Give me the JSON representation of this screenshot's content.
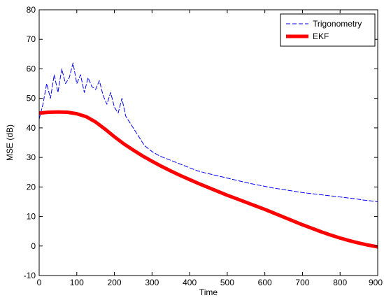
{
  "chart_data": {
    "type": "line",
    "title": "",
    "xlabel": "Time",
    "ylabel": "MSE (dB)",
    "xlim": [
      0,
      900
    ],
    "ylim": [
      -10,
      80
    ],
    "xticks": [
      0,
      100,
      200,
      300,
      400,
      500,
      600,
      700,
      800,
      900
    ],
    "xtick_labels": [
      "0",
      "100",
      "200",
      "300",
      "400",
      "500",
      "600",
      "700",
      "800",
      "900"
    ],
    "yticks": [
      -10,
      0,
      10,
      20,
      30,
      40,
      50,
      60,
      70,
      80
    ],
    "ytick_labels": [
      "-10",
      "0",
      "10",
      "20",
      "30",
      "40",
      "50",
      "60",
      "70",
      "80"
    ],
    "grid": false,
    "legend_position": "top-right",
    "series": [
      {
        "name": "Trigonometry",
        "color": "#0000ff",
        "style": "dashed",
        "x": [
          0,
          10,
          20,
          30,
          40,
          50,
          60,
          70,
          80,
          90,
          100,
          110,
          120,
          130,
          140,
          150,
          160,
          170,
          180,
          190,
          200,
          210,
          220,
          230,
          240,
          250,
          260,
          270,
          280,
          290,
          300,
          320,
          340,
          360,
          380,
          400,
          420,
          440,
          460,
          480,
          500,
          520,
          540,
          560,
          580,
          600,
          620,
          640,
          660,
          680,
          700,
          720,
          740,
          760,
          780,
          800,
          820,
          840,
          860,
          880,
          900
        ],
        "values": [
          43,
          48,
          55,
          50,
          58,
          52,
          60,
          55,
          57,
          62,
          55,
          58,
          52,
          57,
          54,
          53,
          56,
          51,
          48,
          52,
          47,
          45,
          50,
          44,
          42,
          40,
          38,
          36,
          34,
          33,
          32,
          30.5,
          29.5,
          28.5,
          27.5,
          26.5,
          25.5,
          24.8,
          24.2,
          23.6,
          23,
          22.4,
          21.8,
          21.2,
          20.7,
          20.2,
          19.7,
          19.3,
          18.9,
          18.5,
          18.1,
          17.8,
          17.5,
          17.2,
          16.9,
          16.6,
          16.3,
          16,
          15.6,
          15.3,
          15
        ]
      },
      {
        "name": "EKF",
        "color": "#ff0000",
        "style": "solid",
        "x": [
          0,
          25,
          50,
          75,
          100,
          125,
          150,
          175,
          200,
          225,
          250,
          275,
          300,
          325,
          350,
          375,
          400,
          425,
          450,
          475,
          500,
          525,
          550,
          575,
          600,
          625,
          650,
          675,
          700,
          725,
          750,
          775,
          800,
          825,
          850,
          875,
          900
        ],
        "values": [
          45,
          45.3,
          45.4,
          45.3,
          44.8,
          43.8,
          42,
          39.6,
          37,
          34.6,
          32.5,
          30.5,
          28.7,
          27,
          25.4,
          23.9,
          22.5,
          21.1,
          19.8,
          18.5,
          17.2,
          16,
          14.8,
          13.6,
          12.4,
          11.1,
          9.8,
          8.5,
          7.2,
          6,
          4.8,
          3.7,
          2.7,
          1.8,
          1,
          0.3,
          -0.3
        ]
      }
    ]
  }
}
